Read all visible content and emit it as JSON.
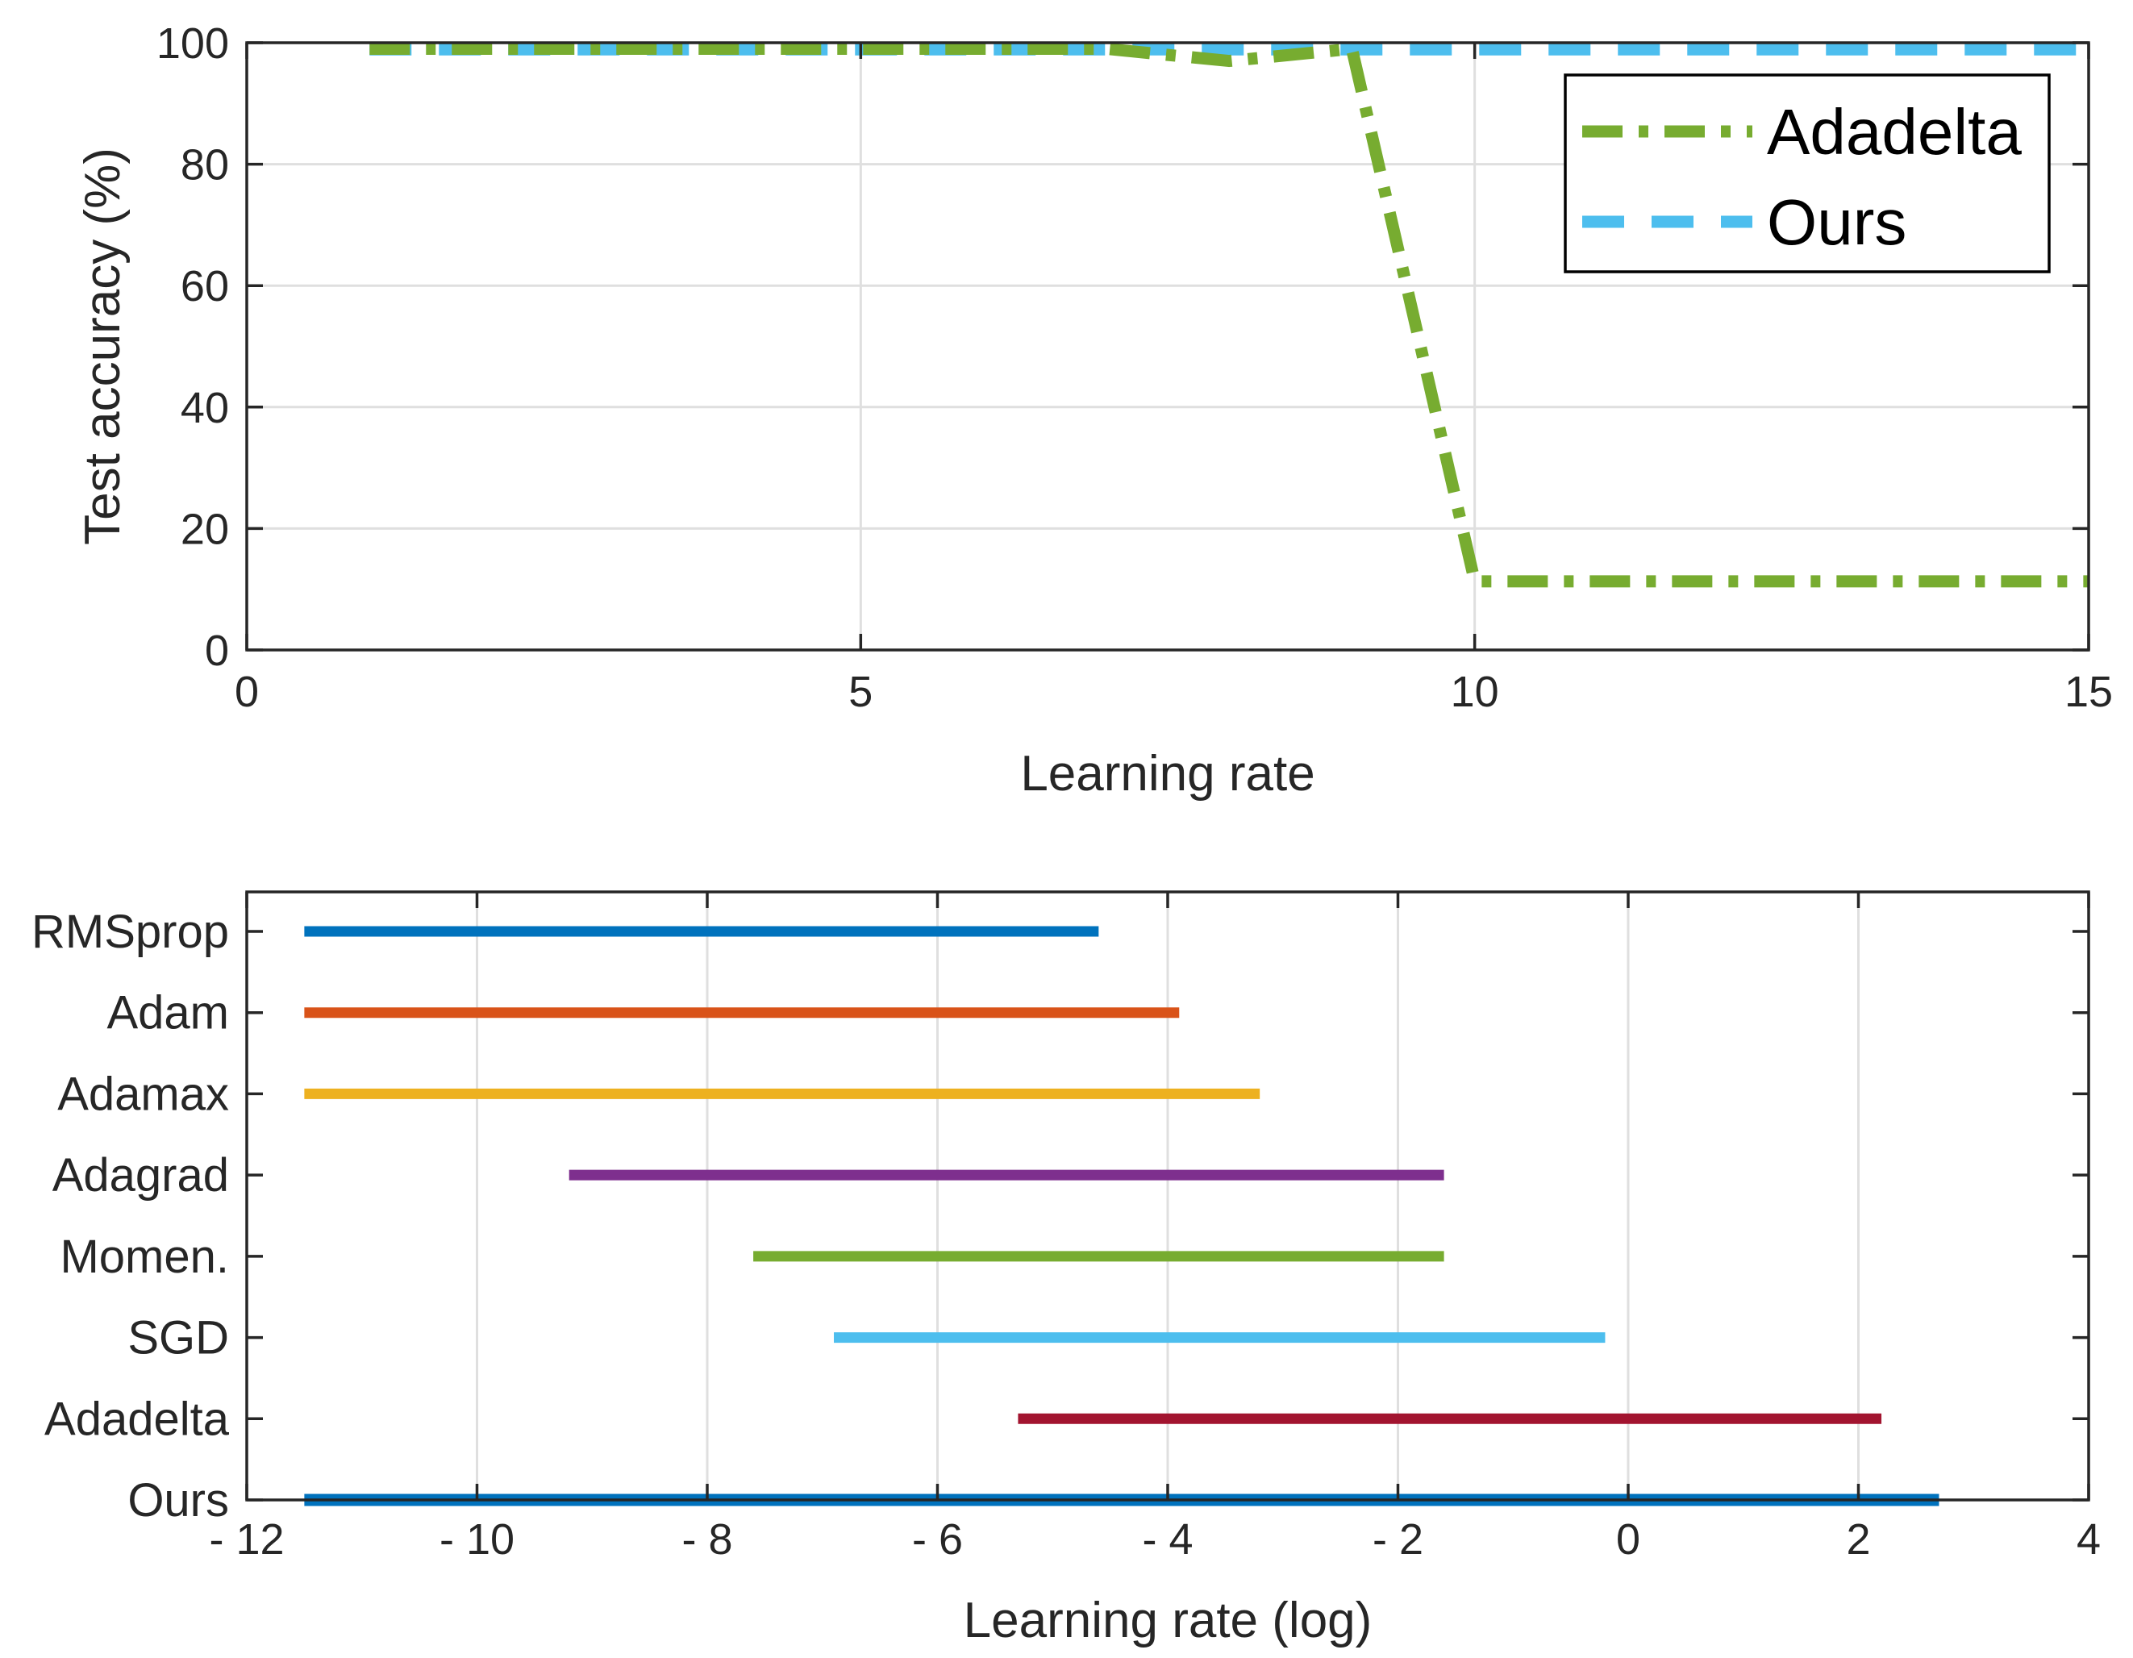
{
  "chart_data": [
    {
      "type": "line",
      "title": "",
      "xlabel": "Learning rate",
      "ylabel": "Test accuracy (%)",
      "xlim": [
        0,
        15
      ],
      "ylim": [
        0,
        100
      ],
      "xticks": [
        0,
        5,
        10,
        15
      ],
      "yticks": [
        0,
        20,
        40,
        60,
        80,
        100
      ],
      "xtick_labels": [
        "0",
        "5",
        "10",
        "15"
      ],
      "ytick_labels": [
        "0",
        "20",
        "40",
        "60",
        "80",
        "100"
      ],
      "grid": true,
      "legend_position": "top-right",
      "series": [
        {
          "name": "Adadelta",
          "color": "#77ac30",
          "style": "dash-dot",
          "x": [
            1,
            2,
            3,
            4,
            5,
            6,
            7,
            8,
            9,
            10,
            11,
            12,
            13,
            14,
            15
          ],
          "y": [
            99,
            99,
            99,
            99,
            99,
            99,
            99,
            97,
            99,
            11.3,
            11.3,
            11.3,
            11.3,
            11.3,
            11.3
          ]
        },
        {
          "name": "Ours",
          "color": "#4dbeee",
          "style": "dashed",
          "x": [
            1,
            2,
            3,
            4,
            5,
            6,
            7,
            8,
            9,
            10,
            11,
            12,
            13,
            14,
            15
          ],
          "y": [
            98.9,
            98.9,
            98.9,
            98.9,
            98.9,
            98.9,
            98.9,
            98.9,
            98.9,
            98.9,
            98.9,
            98.9,
            98.9,
            98.9,
            98.9
          ]
        }
      ]
    },
    {
      "type": "range",
      "title": "",
      "xlabel": "Learning rate (log)",
      "ylabel": "",
      "xlim": [
        -12,
        4
      ],
      "xticks": [
        -12,
        -10,
        -8,
        -6,
        -4,
        -2,
        0,
        2,
        4
      ],
      "xtick_labels": [
        "- 12",
        "- 10",
        "- 8",
        "- 6",
        "- 4",
        "- 2",
        "0",
        "2",
        "4"
      ],
      "grid": true,
      "categories": [
        "RMSprop",
        "Adam",
        "Adamax",
        "Adagrad",
        "Momen.",
        "SGD",
        "Adadelta",
        "Ours"
      ],
      "ranges": [
        {
          "name": "RMSprop",
          "start": -11.5,
          "end": -4.6,
          "color": "#0072bd"
        },
        {
          "name": "Adam",
          "start": -11.5,
          "end": -3.9,
          "color": "#d95319"
        },
        {
          "name": "Adamax",
          "start": -11.5,
          "end": -3.2,
          "color": "#edb120"
        },
        {
          "name": "Adagrad",
          "start": -9.2,
          "end": -1.6,
          "color": "#7e2f8e"
        },
        {
          "name": "Momen.",
          "start": -7.6,
          "end": -1.6,
          "color": "#77ac30"
        },
        {
          "name": "SGD",
          "start": -6.9,
          "end": -0.2,
          "color": "#4dbeee"
        },
        {
          "name": "Adadelta",
          "start": -5.3,
          "end": 2.2,
          "color": "#a2142f"
        },
        {
          "name": "Ours",
          "start": -11.5,
          "end": 2.7,
          "color": "#0072bd"
        }
      ]
    }
  ]
}
